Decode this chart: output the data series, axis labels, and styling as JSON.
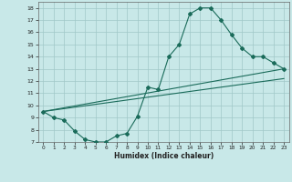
{
  "xlabel": "Humidex (Indice chaleur)",
  "background_color": "#c8e8e8",
  "grid_color": "#a0c8c8",
  "line_color": "#1a6b5a",
  "xlim": [
    -0.5,
    23.5
  ],
  "ylim": [
    7,
    18.5
  ],
  "xticks": [
    0,
    1,
    2,
    3,
    4,
    5,
    6,
    7,
    8,
    9,
    10,
    11,
    12,
    13,
    14,
    15,
    16,
    17,
    18,
    19,
    20,
    21,
    22,
    23
  ],
  "yticks": [
    7,
    8,
    9,
    10,
    11,
    12,
    13,
    14,
    15,
    16,
    17,
    18
  ],
  "line1_x": [
    0,
    1,
    2,
    3,
    4,
    5,
    6,
    7,
    8,
    9,
    10,
    11,
    12,
    13,
    14,
    15,
    16,
    17,
    18,
    19,
    20,
    21,
    22,
    23
  ],
  "line1_y": [
    9.5,
    9.0,
    8.8,
    7.9,
    7.2,
    7.0,
    7.0,
    7.5,
    7.7,
    9.1,
    11.5,
    11.3,
    14.0,
    15.0,
    17.5,
    18.0,
    18.0,
    17.0,
    15.8,
    14.7,
    14.0,
    14.0,
    13.5,
    13.0
  ],
  "line2_x": [
    0,
    23
  ],
  "line2_y": [
    9.5,
    13.0
  ],
  "line3_x": [
    0,
    23
  ],
  "line3_y": [
    9.5,
    12.2
  ]
}
